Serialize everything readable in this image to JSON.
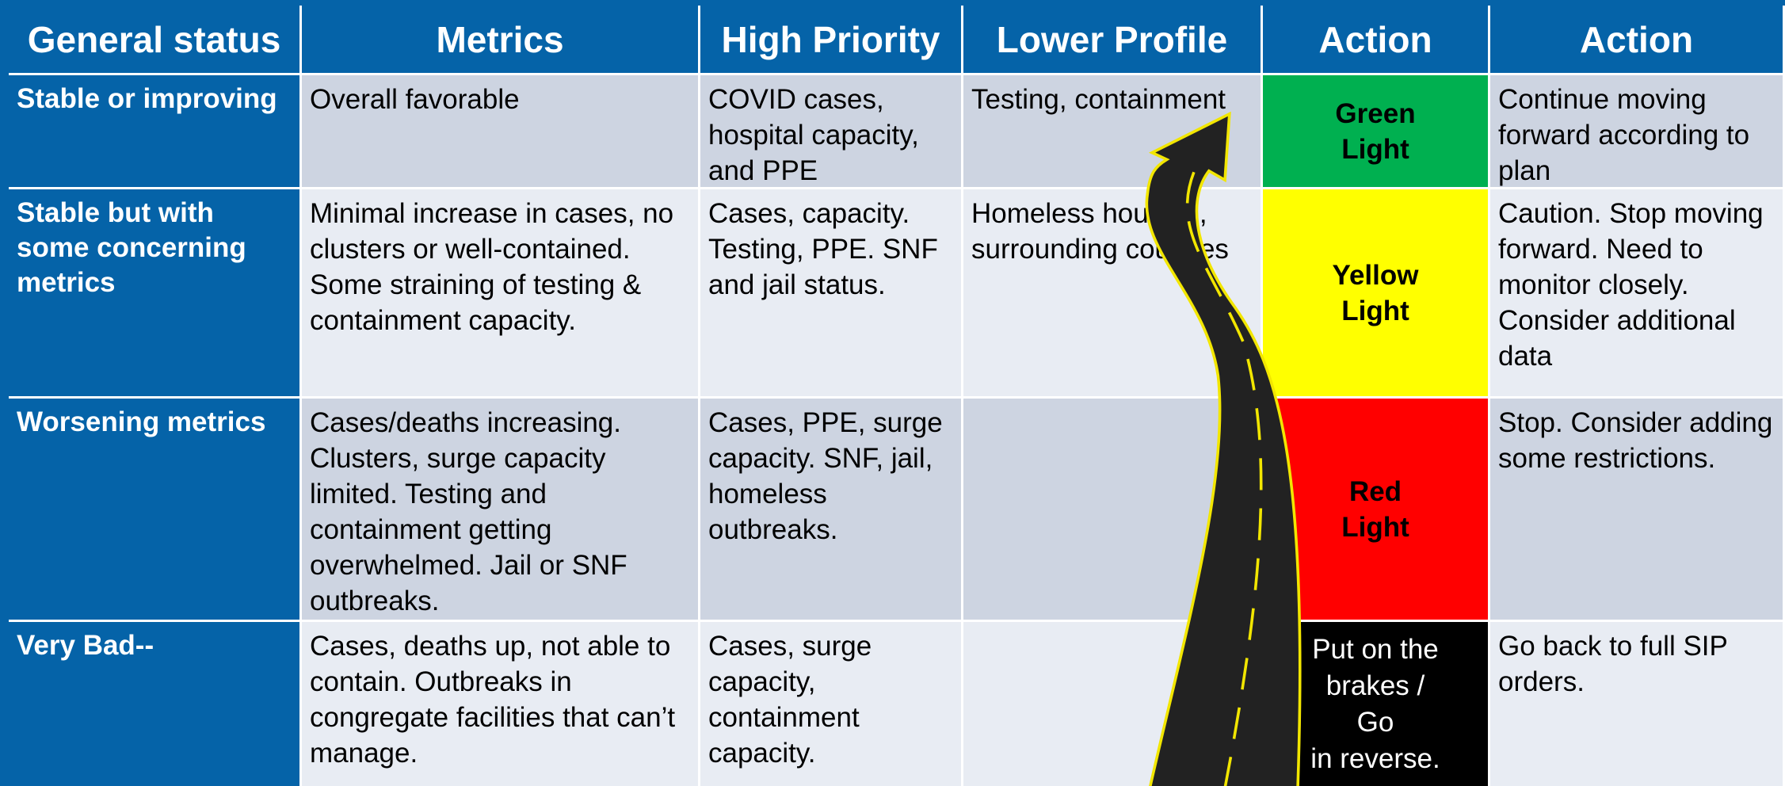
{
  "table": {
    "columns": [
      "General status",
      "Metrics",
      "High Priority",
      "Lower Profile",
      "Action",
      "Action"
    ],
    "rows": [
      [
        "Stable or improving",
        "Overall favorable",
        "COVID cases, hospital capacity, and PPE",
        "Testing, containment",
        "Green\nLight",
        "Continue moving forward according to plan"
      ],
      [
        "Stable but with some concerning metrics",
        "Minimal increase in cases, no clusters or well-contained. Some straining of testing & containment capacity.",
        "Cases, capacity. Testing, PPE. SNF and jail status.",
        "Homeless housing, surrounding counties",
        "Yellow\nLight",
        "Caution. Stop moving forward. Need to monitor closely. Consider additional data"
      ],
      [
        "Worsening metrics",
        "Cases/deaths increasing. Clusters, surge capacity limited. Testing and containment getting overwhelmed. Jail or SNF outbreaks.",
        "Cases, PPE, surge capacity. SNF, jail, homeless outbreaks.",
        "",
        "Red\nLight",
        "Stop. Consider adding some restrictions."
      ],
      [
        "Very Bad--",
        "Cases, deaths up, not able to contain. Outbreaks in congregate facilities that can’t manage.",
        "Cases, surge capacity, containment capacity.",
        "",
        "Put on the\nbrakes /\nGo\nin reverse.",
        "Go back to full SIP orders."
      ]
    ]
  }
}
